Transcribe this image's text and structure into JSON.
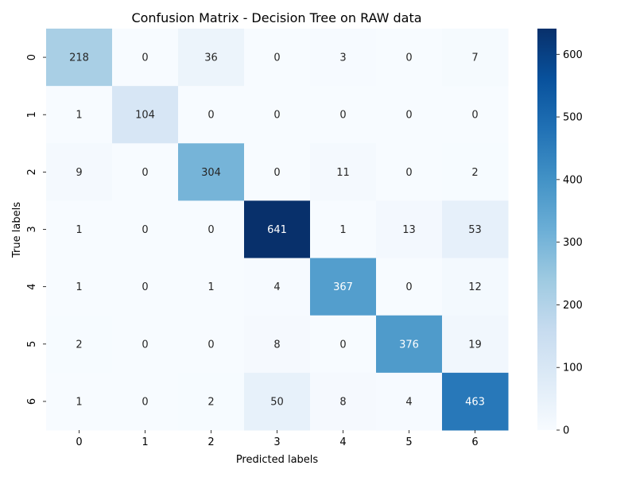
{
  "chart_data": {
    "type": "heatmap",
    "title": "Confusion Matrix - Decision Tree on RAW data",
    "xlabel": "Predicted labels",
    "ylabel": "True labels",
    "x_categories": [
      "0",
      "1",
      "2",
      "3",
      "4",
      "5",
      "6"
    ],
    "y_categories": [
      "0",
      "1",
      "2",
      "3",
      "4",
      "5",
      "6"
    ],
    "values": [
      [
        218,
        0,
        36,
        0,
        3,
        0,
        7
      ],
      [
        1,
        104,
        0,
        0,
        0,
        0,
        0
      ],
      [
        9,
        0,
        304,
        0,
        11,
        0,
        2
      ],
      [
        1,
        0,
        0,
        641,
        1,
        13,
        53
      ],
      [
        1,
        0,
        1,
        4,
        367,
        0,
        12
      ],
      [
        2,
        0,
        0,
        8,
        0,
        376,
        19
      ],
      [
        1,
        0,
        2,
        50,
        8,
        4,
        463
      ]
    ],
    "colormap": "Blues",
    "colorbar": {
      "ticks": [
        "0",
        "100",
        "200",
        "300",
        "400",
        "500",
        "600"
      ],
      "range": [
        0,
        641
      ]
    },
    "colors": {
      "low": "#f7fbff",
      "high": "#08306b"
    }
  }
}
